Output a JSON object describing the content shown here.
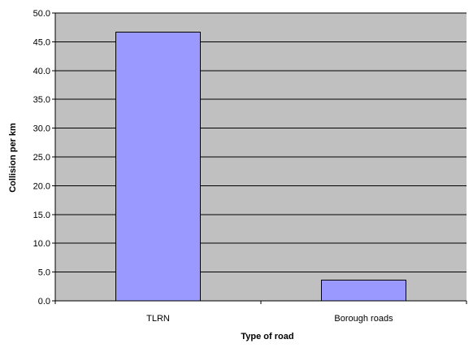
{
  "chart_data": {
    "type": "bar",
    "title": "",
    "xlabel": "Type of road",
    "ylabel": "Collision per km",
    "categories": [
      "TLRN",
      "Borough roads"
    ],
    "values": [
      46.7,
      3.6
    ],
    "ylim": [
      0,
      50
    ],
    "y_ticks": [
      "0.0",
      "5.0",
      "10.0",
      "15.0",
      "20.0",
      "25.0",
      "30.0",
      "35.0",
      "40.0",
      "45.0",
      "50.0"
    ],
    "y_tick_values": [
      0,
      5,
      10,
      15,
      20,
      25,
      30,
      35,
      40,
      45,
      50
    ],
    "grid": true,
    "legend": "none",
    "colors": {
      "plot_background": "#c0c0c0",
      "bar_fill": "#9999ff",
      "bar_stroke": "#000000",
      "gridline": "#000000"
    }
  }
}
